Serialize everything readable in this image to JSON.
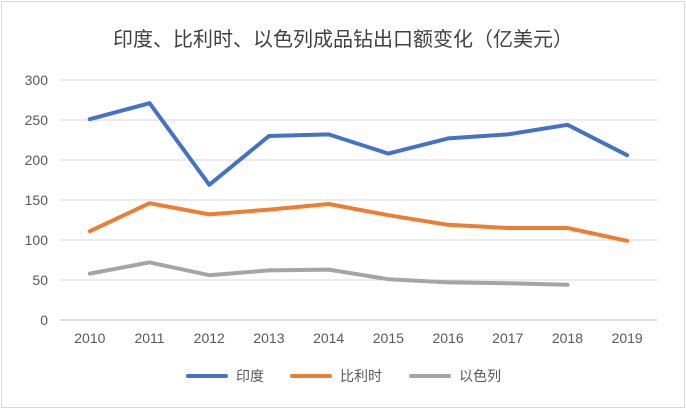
{
  "chart_data": {
    "type": "line",
    "title": "印度、比利时、以色列成品钻出口额变化（亿美元）",
    "xlabel": "",
    "ylabel": "",
    "categories": [
      "2010",
      "2011",
      "2012",
      "2013",
      "2014",
      "2015",
      "2016",
      "2017",
      "2018",
      "2019"
    ],
    "ylim": [
      0,
      300
    ],
    "yticks": [
      "0",
      "50",
      "100",
      "150",
      "200",
      "250",
      "300"
    ],
    "grid": "horizontal",
    "legend": "bottom",
    "series": [
      {
        "name": "印度",
        "color": "#4472C4",
        "values": [
          251,
          271,
          169,
          230,
          232,
          208,
          227,
          232,
          244,
          206
        ]
      },
      {
        "name": "比利时",
        "color": "#ED7D31",
        "values": [
          111,
          146,
          132,
          138,
          145,
          131,
          119,
          115,
          115,
          99
        ]
      },
      {
        "name": "以色列",
        "color": "#A5A5A5",
        "values": [
          58,
          72,
          56,
          62,
          63,
          51,
          47,
          46,
          44,
          null
        ]
      }
    ]
  }
}
